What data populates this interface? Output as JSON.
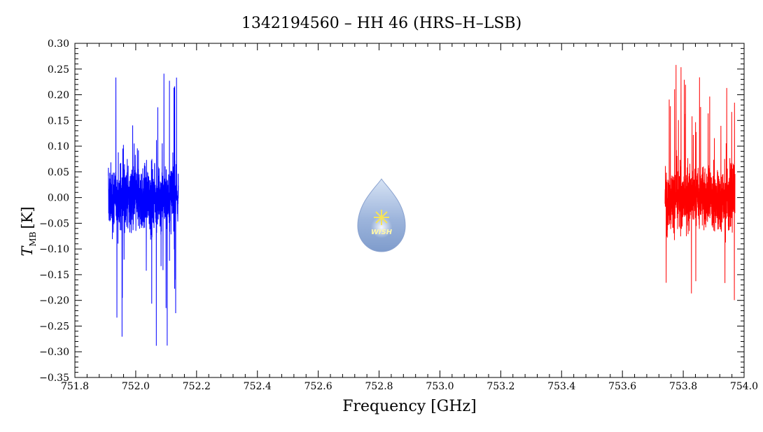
{
  "chart_data": {
    "type": "line",
    "title": "1342194560 – HH 46 (HRS–H–LSB)",
    "xlabel": "Frequency [GHz]",
    "ylabel_main": "T",
    "ylabel_sub": "MB",
    "ylabel_unit": "[K]",
    "xlim": [
      751.8,
      754.0
    ],
    "ylim": [
      -0.35,
      0.3
    ],
    "x_ticks": [
      "751.8",
      "752.0",
      "752.2",
      "752.4",
      "752.6",
      "752.8",
      "753.0",
      "753.2",
      "753.4",
      "753.6",
      "753.8",
      "754.0"
    ],
    "y_ticks": [
      "0.30",
      "0.25",
      "0.20",
      "0.15",
      "0.10",
      "0.05",
      "0.00",
      "−0.05",
      "−0.10",
      "−0.15",
      "−0.20",
      "−0.25",
      "−0.30",
      "−0.35"
    ],
    "grid": false,
    "legend": "none",
    "series": [
      {
        "color": "#0000ff",
        "x_range": [
          751.91,
          752.14
        ],
        "noise_range": [
          -0.29,
          0.25
        ],
        "typical_sigma": 0.06
      },
      {
        "color": "#ff0000",
        "x_range": [
          753.74,
          753.97
        ],
        "noise_range": [
          -0.22,
          0.28
        ],
        "typical_sigma": 0.055
      }
    ],
    "logo": {
      "name": "wish-logo-icon",
      "text": "WISH"
    }
  }
}
